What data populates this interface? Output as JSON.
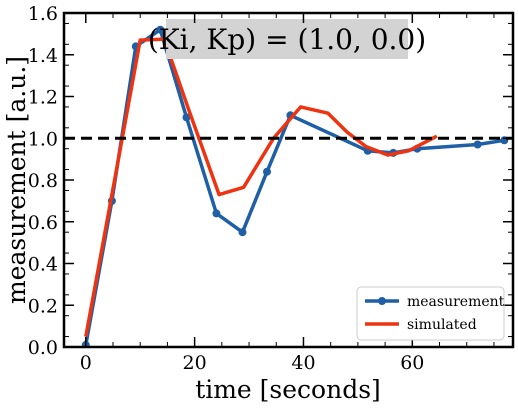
{
  "chart_data": {
    "type": "line",
    "title": "",
    "annotation": "(Ki, Kp) = (1.0, 0.0)",
    "xlabel": "time [seconds]",
    "ylabel": "measurement [a.u.]",
    "xlim": [
      -4,
      78.5
    ],
    "ylim": [
      0,
      1.6
    ],
    "xticks": [
      0,
      20,
      40,
      60
    ],
    "yticks": [
      0.0,
      0.2,
      0.4,
      0.6,
      0.8,
      1.0,
      1.2,
      1.4,
      1.6
    ],
    "xtick_labels": [
      "0",
      "20",
      "40",
      "60"
    ],
    "ytick_labels": [
      "0.0",
      "0.2",
      "0.4",
      "0.6",
      "0.8",
      "1.0",
      "1.2",
      "1.4",
      "1.6"
    ],
    "reference_line": {
      "y": 1.0,
      "style": "dashed",
      "color": "#000000"
    },
    "grid": false,
    "legend_position": "lower-right",
    "series": [
      {
        "name": "measurement",
        "color": "#1f5fa6",
        "marker": "circle",
        "points": [
          [
            0,
            0.01
          ],
          [
            4.8,
            0.7
          ],
          [
            9.2,
            1.44
          ],
          [
            13.7,
            1.52
          ],
          [
            18.5,
            1.1
          ],
          [
            24.0,
            0.64
          ],
          [
            28.8,
            0.55
          ],
          [
            33.3,
            0.84
          ],
          [
            37.6,
            1.11
          ],
          [
            51.8,
            0.94
          ],
          [
            56.5,
            0.93
          ],
          [
            60.9,
            0.95
          ],
          [
            72.0,
            0.97
          ],
          [
            76.9,
            0.99
          ]
        ]
      },
      {
        "name": "simulated",
        "color": "#ee3311",
        "marker": "none",
        "points": [
          [
            0,
            0.05
          ],
          [
            5.3,
            0.8
          ],
          [
            10.0,
            1.47
          ],
          [
            14.4,
            1.475
          ],
          [
            19.0,
            1.13
          ],
          [
            24.5,
            0.73
          ],
          [
            29.0,
            0.765
          ],
          [
            34.5,
            1.0
          ],
          [
            39.5,
            1.15
          ],
          [
            44.5,
            1.12
          ],
          [
            48.0,
            1.03
          ],
          [
            51.5,
            0.96
          ],
          [
            55.5,
            0.92
          ],
          [
            59.3,
            0.94
          ],
          [
            64.5,
            1.01
          ]
        ]
      }
    ]
  }
}
